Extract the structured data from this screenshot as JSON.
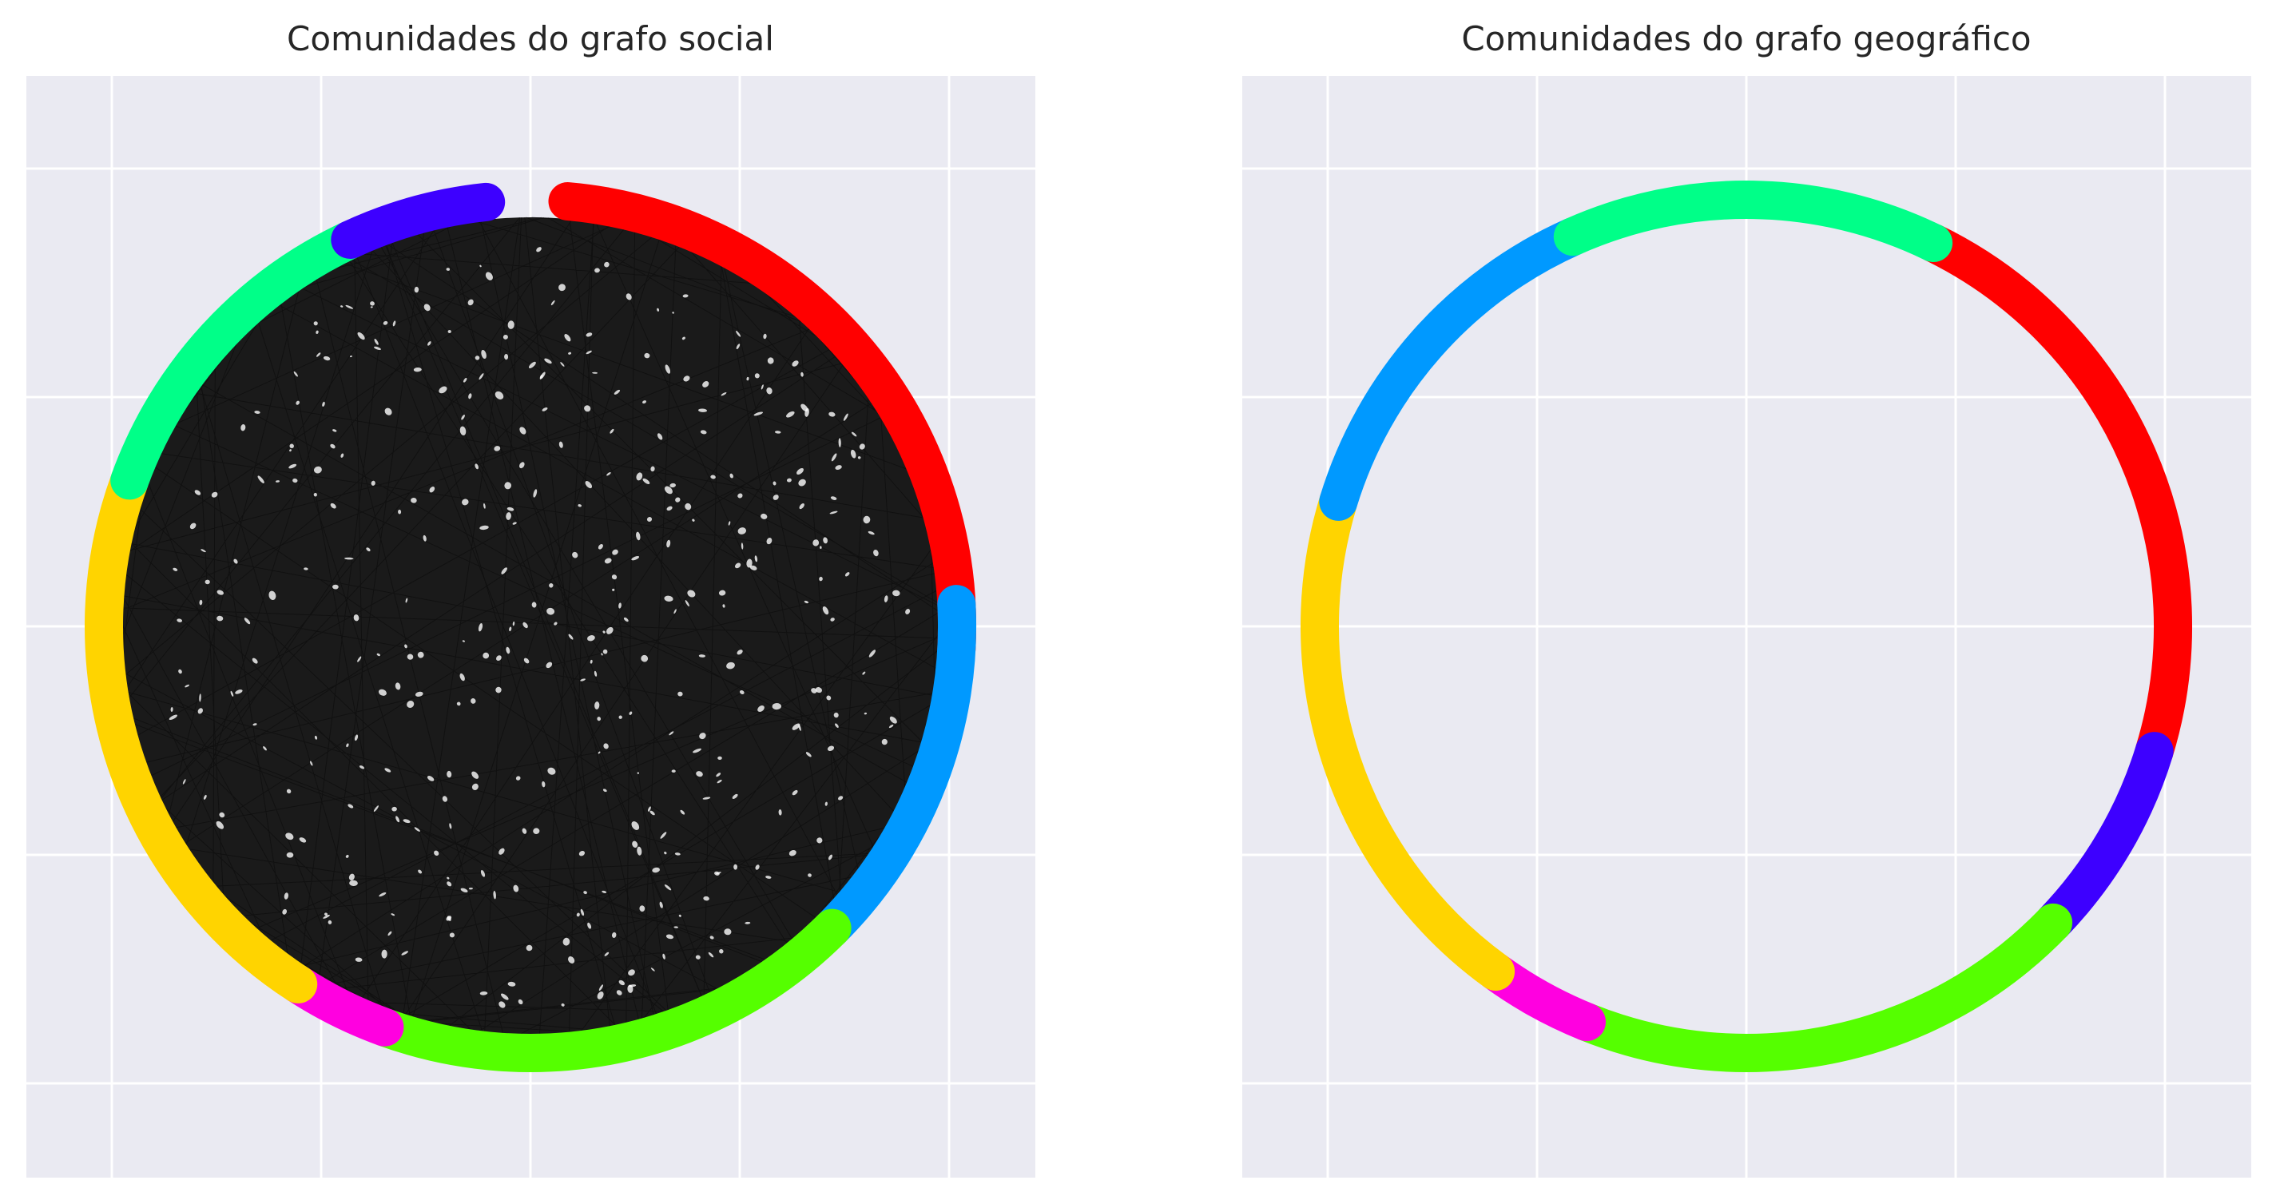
{
  "figure": {
    "background": "#ffffff",
    "panel_background": "#eaeaf2",
    "grid_color": "#ffffff",
    "edge_color": "#1a1a1a"
  },
  "chart_data": [
    {
      "type": "network-circular",
      "title": "Comunidades do grafo social",
      "grid": true,
      "axis_tick_labels": false,
      "edges_drawn": true,
      "communities": [
        {
          "color": "#ff0000",
          "arc_deg": [
            -3,
            85
          ]
        },
        {
          "color": "#0099ff",
          "arc_deg": [
            -45,
            3
          ]
        },
        {
          "color": "#55ff00",
          "arc_deg": [
            -110,
            -45
          ]
        },
        {
          "color": "#ff00e0",
          "arc_deg": [
            -123,
            -110
          ]
        },
        {
          "color": "#ffd400",
          "arc_deg": [
            -200,
            -123
          ]
        },
        {
          "color": "#00ff88",
          "arc_deg": [
            -245,
            -200
          ]
        },
        {
          "color": "#3d00ff",
          "arc_deg": [
            -264,
            -245
          ]
        }
      ]
    },
    {
      "type": "network-circular",
      "title": "Comunidades do grafo geográfico",
      "grid": true,
      "axis_tick_labels": false,
      "edges_drawn": false,
      "communities": [
        {
          "color": "#ff0000",
          "arc_deg": [
            -17,
            64
          ]
        },
        {
          "color": "#3d00ff",
          "arc_deg": [
            -44,
            -17
          ]
        },
        {
          "color": "#55ff00",
          "arc_deg": [
            -112,
            -44
          ]
        },
        {
          "color": "#ff00e0",
          "arc_deg": [
            -126,
            -112
          ]
        },
        {
          "color": "#ffd400",
          "arc_deg": [
            -197,
            -126
          ]
        },
        {
          "color": "#0099ff",
          "arc_deg": [
            -246,
            -197
          ]
        },
        {
          "color": "#00ff88",
          "arc_deg": [
            -296,
            -246
          ]
        }
      ]
    }
  ]
}
